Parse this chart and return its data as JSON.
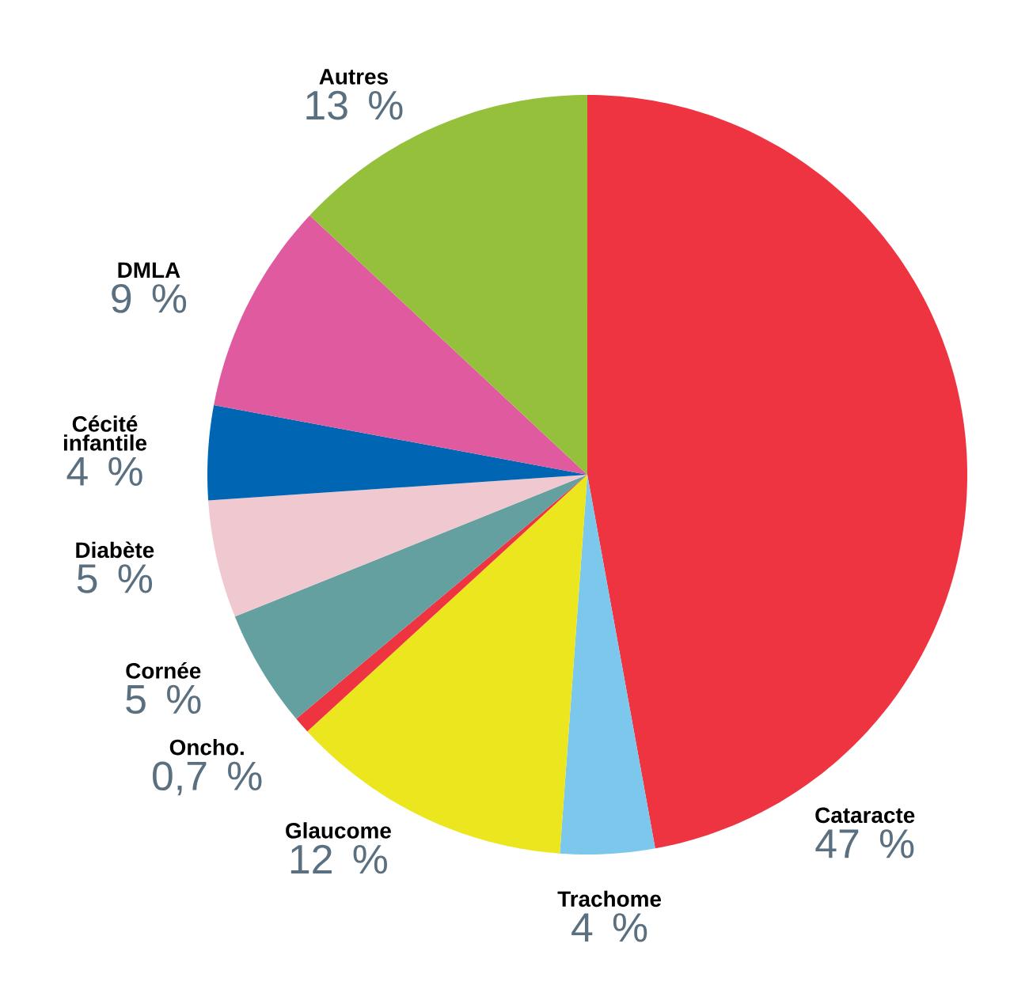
{
  "chart_data": {
    "type": "pie",
    "categories": [
      "Cataracte",
      "Trachome",
      "Glaucome",
      "Oncho.",
      "Cornée",
      "Diabète",
      "Cécité infantile",
      "DMLA",
      "Autres"
    ],
    "values": [
      47,
      4,
      12,
      0.7,
      5,
      5,
      4,
      9,
      13
    ],
    "value_labels": [
      "47 %",
      "4 %",
      "12 %",
      "0,7 %",
      "5 %",
      "5 %",
      "4 %",
      "9 %",
      "13 %"
    ],
    "colors": [
      "#ee3440",
      "#7cc8ec",
      "#ece61e",
      "#ee3440",
      "#64a0a0",
      "#efc8d0",
      "#0066b3",
      "#e05aa0",
      "#94c03c"
    ]
  }
}
